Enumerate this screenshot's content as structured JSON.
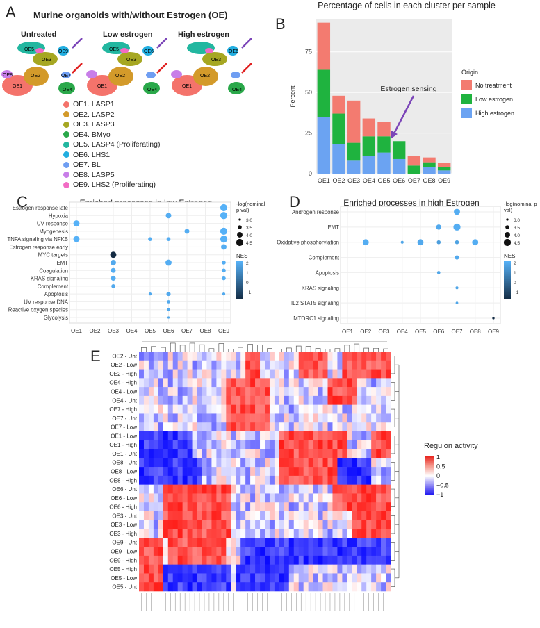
{
  "panelA": {
    "letter": "A",
    "title": "Murine organoids with/without Estrogen (OE)",
    "umaps": [
      {
        "label": "Untreated"
      },
      {
        "label": "Low estrogen"
      },
      {
        "label": "High estrogen"
      }
    ],
    "cluster_names": {
      "OE1": "OE1",
      "OE2": "OE2",
      "OE3": "OE3",
      "OE4": "OE4",
      "OE5": "OE5",
      "OE6": "OE6",
      "OE7": "OE7",
      "OE8": "OE8",
      "OE9": "OE9"
    },
    "legend": [
      {
        "label": "OE1. LASP1",
        "color": "#f4736b"
      },
      {
        "label": "OE2. LASP2",
        "color": "#d39a2a"
      },
      {
        "label": "OE3. LASP3",
        "color": "#a6a722"
      },
      {
        "label": "OE4. BMyo",
        "color": "#2aa84a"
      },
      {
        "label": "OE5. LASP4 (Proliferating)",
        "color": "#22b7a0"
      },
      {
        "label": "OE6. LHS1",
        "color": "#22aee0"
      },
      {
        "label": "OE7. BL",
        "color": "#6f9ef2"
      },
      {
        "label": "OE8. LASP5",
        "color": "#c87ee8"
      },
      {
        "label": "OE9. LHS2 (Proliferating)",
        "color": "#f26cc4"
      }
    ]
  },
  "panelB": {
    "letter": "B",
    "annotation": "Estrogen sensing",
    "legend_title": "Origin"
  },
  "panelC": {
    "letter": "C",
    "nes_label": "NES",
    "size_label": "-log(nominal\np val)"
  },
  "panelD": {
    "letter": "D",
    "nes_label": "NES",
    "size_label": "-log(nominal p\nval)"
  },
  "panelE": {
    "letter": "E",
    "rows": [
      "OE2 - Unt",
      "OE2 - Low",
      "OE2 - High",
      "OE4 - High",
      "OE4 - Low",
      "OE4 - Unt",
      "OE7 - High",
      "OE7 - Unt",
      "OE7 - Low",
      "OE1 - Low",
      "OE1 - High",
      "OE1 - Unt",
      "OE8 - Unt",
      "OE8 - Low",
      "OE8 - High",
      "OE6 - Unt",
      "OE6 - Low",
      "OE6 - High",
      "OE3 - Unt",
      "OE3 - Low",
      "OE3 - High",
      "OE9 - Unt",
      "OE9 - Low",
      "OE9 - High",
      "OE5 - High",
      "OE5 - Low",
      "OE5 - Unt"
    ],
    "legend_title": "Regulon activity",
    "legend_ticks": [
      "1",
      "0.5",
      "0",
      "−0.5",
      "−1"
    ]
  },
  "chart_data": [
    {
      "type": "bar",
      "title": "Percentage of cells in each cluster per sample",
      "xlabel": "",
      "ylabel": "Percent",
      "categories": [
        "OE1",
        "OE2",
        "OE3",
        "OE4",
        "OE5",
        "OE6",
        "OE7",
        "OE8",
        "OE9"
      ],
      "series": [
        {
          "name": "High estrogen",
          "color": "#6ba3f2",
          "values": [
            35,
            18,
            8,
            11,
            13,
            9,
            0,
            4,
            2
          ]
        },
        {
          "name": "Low estrogen",
          "color": "#1fb33f",
          "values": [
            29,
            19,
            11,
            12,
            10,
            11,
            5,
            3,
            2
          ]
        },
        {
          "name": "No treatment",
          "color": "#f37b70",
          "values": [
            29,
            11,
            26,
            11,
            9,
            0,
            6,
            3,
            2.5
          ]
        }
      ],
      "legend_order": [
        "No treatment",
        "Low estrogen",
        "High estrogen"
      ],
      "yticks": [
        0,
        25,
        50,
        75
      ],
      "ylim": [
        0,
        95
      ]
    },
    {
      "type": "scatter",
      "title": "Enriched processes in low Estrogen",
      "categories": [
        "OE1",
        "OE2",
        "OE3",
        "OE4",
        "OE5",
        "OE6",
        "OE7",
        "OE8",
        "OE9"
      ],
      "rows": [
        "Estrogen response late",
        "Hypoxia",
        "UV response",
        "Myogenesis",
        "TNFA signaling via NFKB",
        "Estrogen response early",
        "MYC targets",
        "EMT",
        "Coagulation",
        "KRAS signaling",
        "Complement",
        "Apoptosis",
        "UV response DNA",
        "Reactive oxygen species",
        "Glycolysis"
      ],
      "points": [
        {
          "row": 0,
          "col": 8,
          "size": 4.5,
          "nes": 2.0
        },
        {
          "row": 1,
          "col": 5,
          "size": 4.0,
          "nes": 1.9
        },
        {
          "row": 1,
          "col": 8,
          "size": 4.5,
          "nes": 2.0
        },
        {
          "row": 2,
          "col": 0,
          "size": 4.2,
          "nes": 2.0
        },
        {
          "row": 3,
          "col": 6,
          "size": 3.8,
          "nes": 1.9
        },
        {
          "row": 3,
          "col": 8,
          "size": 4.5,
          "nes": 2.0
        },
        {
          "row": 4,
          "col": 0,
          "size": 4.2,
          "nes": 2.0
        },
        {
          "row": 4,
          "col": 4,
          "size": 3.5,
          "nes": 1.9
        },
        {
          "row": 4,
          "col": 5,
          "size": 3.5,
          "nes": 1.9
        },
        {
          "row": 4,
          "col": 8,
          "size": 4.5,
          "nes": 2.0
        },
        {
          "row": 5,
          "col": 8,
          "size": 4.0,
          "nes": 1.9
        },
        {
          "row": 6,
          "col": 2,
          "size": 4.2,
          "nes": -1.5
        },
        {
          "row": 7,
          "col": 2,
          "size": 4.0,
          "nes": 1.8
        },
        {
          "row": 7,
          "col": 5,
          "size": 4.2,
          "nes": 1.9
        },
        {
          "row": 7,
          "col": 8,
          "size": 3.5,
          "nes": 1.9
        },
        {
          "row": 8,
          "col": 2,
          "size": 3.8,
          "nes": 1.9
        },
        {
          "row": 8,
          "col": 8,
          "size": 3.5,
          "nes": 1.9
        },
        {
          "row": 9,
          "col": 2,
          "size": 3.8,
          "nes": 1.9
        },
        {
          "row": 9,
          "col": 8,
          "size": 3.5,
          "nes": 1.9
        },
        {
          "row": 10,
          "col": 2,
          "size": 3.5,
          "nes": 1.8
        },
        {
          "row": 11,
          "col": 4,
          "size": 3.2,
          "nes": 1.8
        },
        {
          "row": 11,
          "col": 5,
          "size": 3.6,
          "nes": 1.8
        },
        {
          "row": 11,
          "col": 8,
          "size": 3.2,
          "nes": 1.8
        },
        {
          "row": 12,
          "col": 5,
          "size": 3.3,
          "nes": 1.8
        },
        {
          "row": 13,
          "col": 5,
          "size": 3.3,
          "nes": 1.8
        },
        {
          "row": 14,
          "col": 5,
          "size": 3.0,
          "nes": 1.7
        }
      ],
      "size_legend": [
        3.0,
        3.5,
        4.0,
        4.5
      ],
      "nes_ticks": [
        2,
        1,
        0,
        -1
      ]
    },
    {
      "type": "scatter",
      "title": "Enriched processes in high Estrogen",
      "categories": [
        "OE1",
        "OE2",
        "OE3",
        "OE4",
        "OE5",
        "OE6",
        "OE7",
        "OE8",
        "OE9"
      ],
      "rows": [
        "Androgen response",
        "EMT",
        "Oxidative phosphorylation",
        "Complement",
        "Apoptosis",
        "KRAS signaling",
        "IL2 STAT5 signaling",
        "MTORC1 signaling"
      ],
      "points": [
        {
          "row": 0,
          "col": 6,
          "size": 4.2,
          "nes": 1.9
        },
        {
          "row": 1,
          "col": 5,
          "size": 3.9,
          "nes": 1.8
        },
        {
          "row": 1,
          "col": 6,
          "size": 4.5,
          "nes": 1.9
        },
        {
          "row": 2,
          "col": 1,
          "size": 4.2,
          "nes": 1.9
        },
        {
          "row": 2,
          "col": 3,
          "size": 3.2,
          "nes": 1.7
        },
        {
          "row": 2,
          "col": 4,
          "size": 4.2,
          "nes": 1.8
        },
        {
          "row": 2,
          "col": 5,
          "size": 3.5,
          "nes": 1.5
        },
        {
          "row": 2,
          "col": 6,
          "size": 3.5,
          "nes": 1.6
        },
        {
          "row": 2,
          "col": 7,
          "size": 4.2,
          "nes": 1.9
        },
        {
          "row": 3,
          "col": 6,
          "size": 3.6,
          "nes": 1.8
        },
        {
          "row": 4,
          "col": 5,
          "size": 3.3,
          "nes": 1.7
        },
        {
          "row": 5,
          "col": 6,
          "size": 3.2,
          "nes": 1.7
        },
        {
          "row": 6,
          "col": 6,
          "size": 3.1,
          "nes": 1.7
        },
        {
          "row": 7,
          "col": 8,
          "size": 3.0,
          "nes": -1.5
        }
      ],
      "size_legend": [
        3.0,
        3.5,
        4.0,
        4.5
      ],
      "nes_ticks": [
        2,
        1,
        0,
        -1
      ]
    }
  ]
}
